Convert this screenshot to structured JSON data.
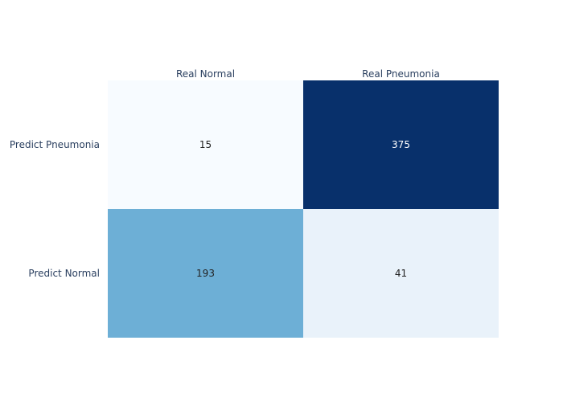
{
  "chart_data": {
    "type": "heatmap",
    "title": "",
    "xlabel": "",
    "ylabel": "",
    "x": [
      "Real Normal",
      "Real Pneumonia"
    ],
    "y": [
      "Predict Pneumonia",
      "Predict Normal"
    ],
    "z": [
      [
        15,
        375
      ],
      [
        193,
        41
      ]
    ],
    "colorscale": "Blues",
    "colorscale_stops": [
      "#f7fbff",
      "#deebf7",
      "#c6dbef",
      "#9ecae1",
      "#6baed6",
      "#4292c6",
      "#2171b5",
      "#08519c",
      "#08306b"
    ],
    "x_axis_side": "top",
    "showscale": false,
    "text_colors": {
      "dark": "#222222",
      "light": "#ffffff"
    }
  }
}
